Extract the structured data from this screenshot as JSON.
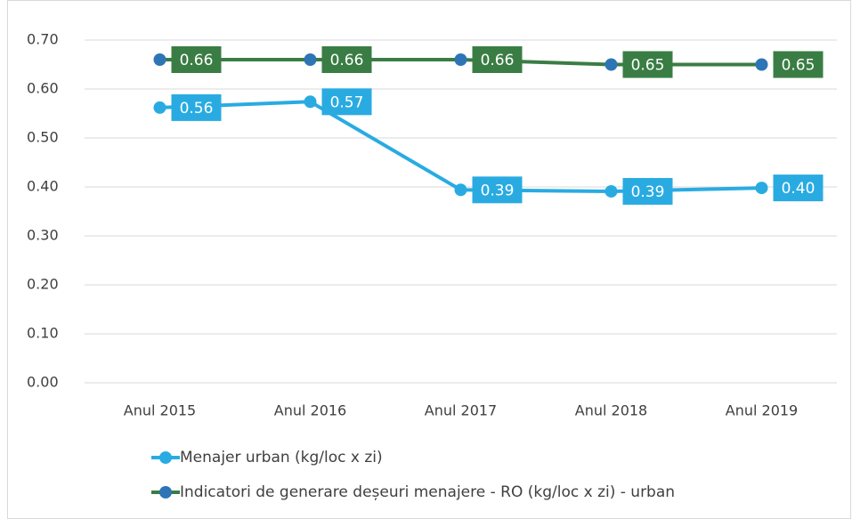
{
  "chart_data": {
    "type": "line",
    "categories": [
      "Anul 2015",
      "Anul 2016",
      "Anul 2017",
      "Anul 2018",
      "Anul 2019"
    ],
    "series": [
      {
        "name": "Menajer urban (kg/loc x zi)",
        "color": "#29abe2",
        "marker_color": "#29abe2",
        "values": [
          0.562,
          0.574,
          0.394,
          0.391,
          0.398
        ],
        "value_labels": [
          "0.56",
          "0.57",
          "0.39",
          "0.39",
          "0.40"
        ]
      },
      {
        "name": "Indicatori de generare deșeuri menajere - RO (kg/loc x zi) - urban",
        "color": "#3a7d44",
        "marker_color": "#2e75b6",
        "values": [
          0.66,
          0.66,
          0.66,
          0.65,
          0.65
        ],
        "value_labels": [
          "0.66",
          "0.66",
          "0.66",
          "0.65",
          "0.65"
        ]
      }
    ],
    "ylim": [
      0,
      0.7
    ],
    "yticks": [
      {
        "value": 0,
        "label": "0.00"
      },
      {
        "value": 0.1,
        "label": "0.10"
      },
      {
        "value": 0.2,
        "label": "0.20"
      },
      {
        "value": 0.3,
        "label": "0.30"
      },
      {
        "value": 0.4,
        "label": "0.40"
      },
      {
        "value": 0.5,
        "label": "0.50"
      },
      {
        "value": 0.6,
        "label": "0.60"
      },
      {
        "value": 0.7,
        "label": "0.70"
      }
    ],
    "grid": true,
    "legend": "bottom"
  }
}
